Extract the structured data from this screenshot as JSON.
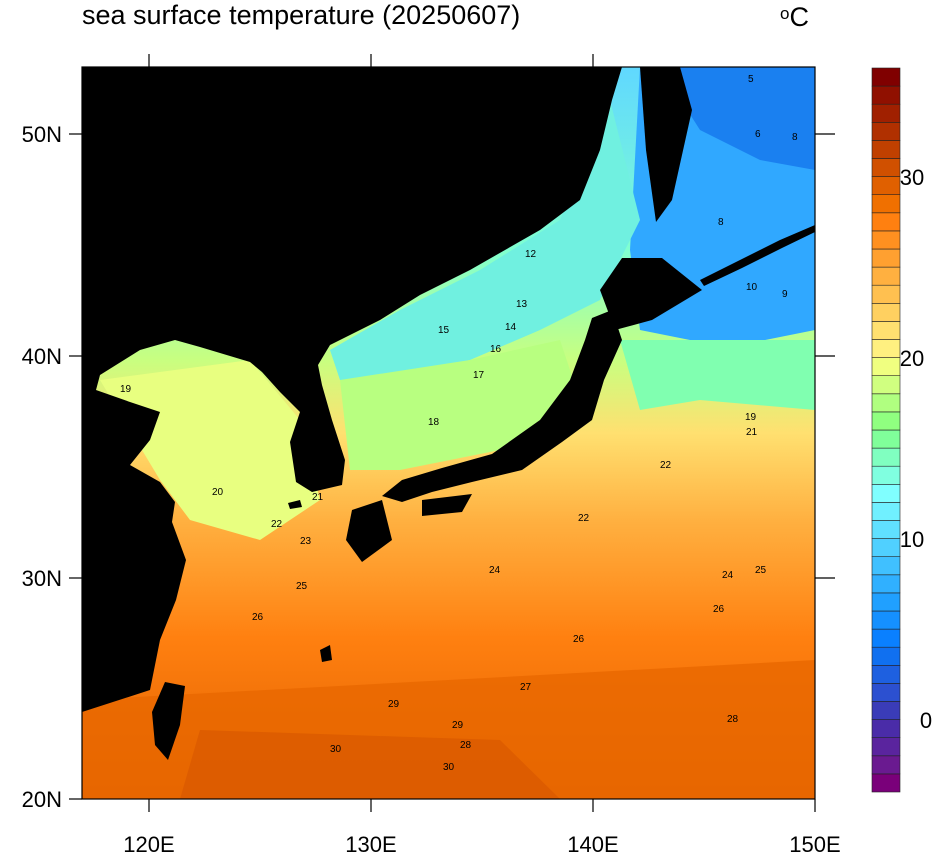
{
  "title": "sea surface temperature (20250607)",
  "units": {
    "base": "C",
    "degree": "o"
  },
  "map": {
    "lon_range": [
      117,
      150
    ],
    "lat_range": [
      20,
      53
    ],
    "land_color": "#000000",
    "lon_ticks": [
      "120E",
      "130E",
      "140E",
      "150E"
    ],
    "lat_ticks": [
      "50N",
      "40N",
      "30N",
      "20N"
    ],
    "contour_labels": [
      "5",
      "6",
      "8",
      "8",
      "9",
      "10",
      "12",
      "13",
      "14",
      "15",
      "16",
      "17",
      "18",
      "19",
      "19",
      "20",
      "21",
      "21",
      "22",
      "22",
      "22",
      "23",
      "24",
      "24",
      "25",
      "25",
      "26",
      "26",
      "26",
      "27",
      "27",
      "28",
      "28",
      "29",
      "29",
      "30",
      "30"
    ]
  },
  "colorbar": {
    "min": -4,
    "max": 36,
    "step": 1,
    "tick_labels": [
      "30",
      "20",
      "10",
      "0"
    ],
    "colors": [
      "#7a007a",
      "#6a1a90",
      "#5a249e",
      "#4a2ca8",
      "#3a3cb8",
      "#2c50d0",
      "#1e60e0",
      "#1070f0",
      "#0a80ff",
      "#1590ff",
      "#20a0ff",
      "#30b0ff",
      "#40c0ff",
      "#50d0ff",
      "#60e0ff",
      "#70f0ff",
      "#80ffff",
      "#80ffe0",
      "#80ffc0",
      "#80ff9a",
      "#90ff80",
      "#b0ff80",
      "#d0ff80",
      "#f0ff80",
      "#fff080",
      "#ffe070",
      "#ffd060",
      "#ffc050",
      "#ffb040",
      "#ffa030",
      "#ff9020",
      "#ff8010",
      "#f07000",
      "#e06000",
      "#d05000",
      "#c04000",
      "#b03000",
      "#a02000",
      "#901000",
      "#800000"
    ]
  }
}
